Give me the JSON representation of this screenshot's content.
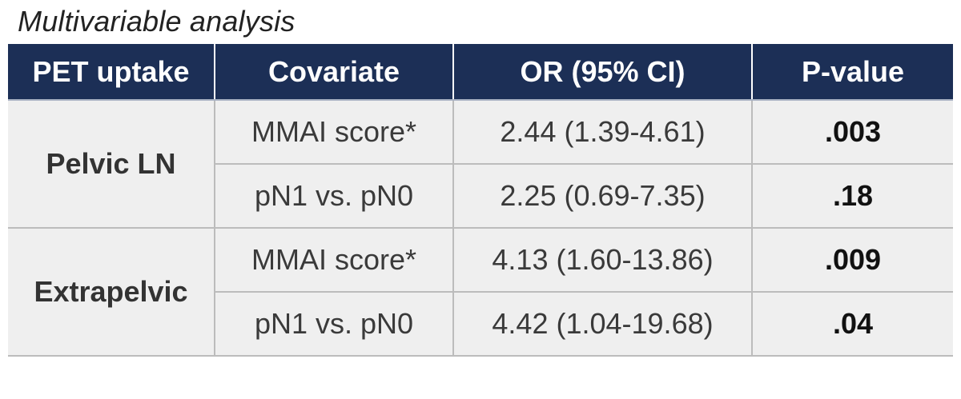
{
  "caption": "Multivariable analysis",
  "table": {
    "headers": [
      "PET uptake",
      "Covariate",
      "OR (95% CI)",
      "P-value"
    ],
    "groups": [
      {
        "label": "Pelvic LN",
        "rows": [
          {
            "covariate": "MMAI score*",
            "or_ci": "2.44 (1.39-4.61)",
            "p_value": ".003"
          },
          {
            "covariate": "pN1 vs. pN0",
            "or_ci": "2.25 (0.69-7.35)",
            "p_value": ".18"
          }
        ]
      },
      {
        "label": "Extrapelvic",
        "rows": [
          {
            "covariate": "MMAI score*",
            "or_ci": "4.13 (1.60-13.86)",
            "p_value": ".009"
          },
          {
            "covariate": "pN1 vs. pN0",
            "or_ci": "4.42 (1.04-19.68)",
            "p_value": ".04"
          }
        ]
      }
    ]
  },
  "colors": {
    "header_bg": "#1c2f56",
    "header_text": "#ffffff",
    "body_bg": "#efefef",
    "grid": "#bcbcbc"
  }
}
